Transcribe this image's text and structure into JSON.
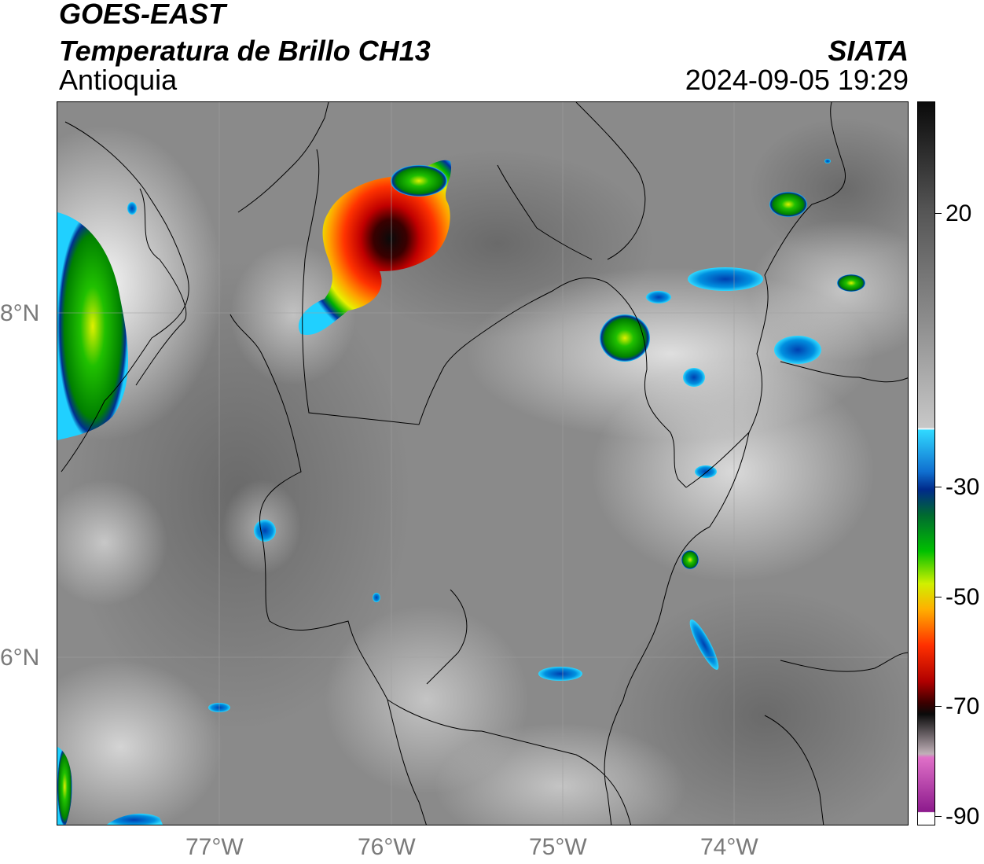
{
  "header": {
    "title_line1": "GOES-EAST",
    "title_line2": "Temperatura de Brillo CH13",
    "subtitle": "Antioquia",
    "org": "SIATA",
    "timestamp": "2024-09-05 19:29"
  },
  "map": {
    "lat_labels": [
      "8°N",
      "6°N"
    ],
    "lon_labels": [
      "77°W",
      "76°W",
      "75°W",
      "74°W"
    ]
  },
  "colorbar": {
    "tick_labels": [
      "20",
      "-30",
      "-50",
      "-70",
      "-90"
    ],
    "colors": {
      "warm_top": "#0a0a0a",
      "gray_mid": "#8c8c8c",
      "white": "#ffffff",
      "cyan": "#1ec8ff",
      "blue": "#0033a0",
      "green": "#00b400",
      "yellow": "#f0f000",
      "orange": "#ff9900",
      "red": "#e60000",
      "dark_red": "#5a0000",
      "black": "#000000",
      "pink": "#e060c0",
      "purple": "#8c1a8c"
    }
  }
}
